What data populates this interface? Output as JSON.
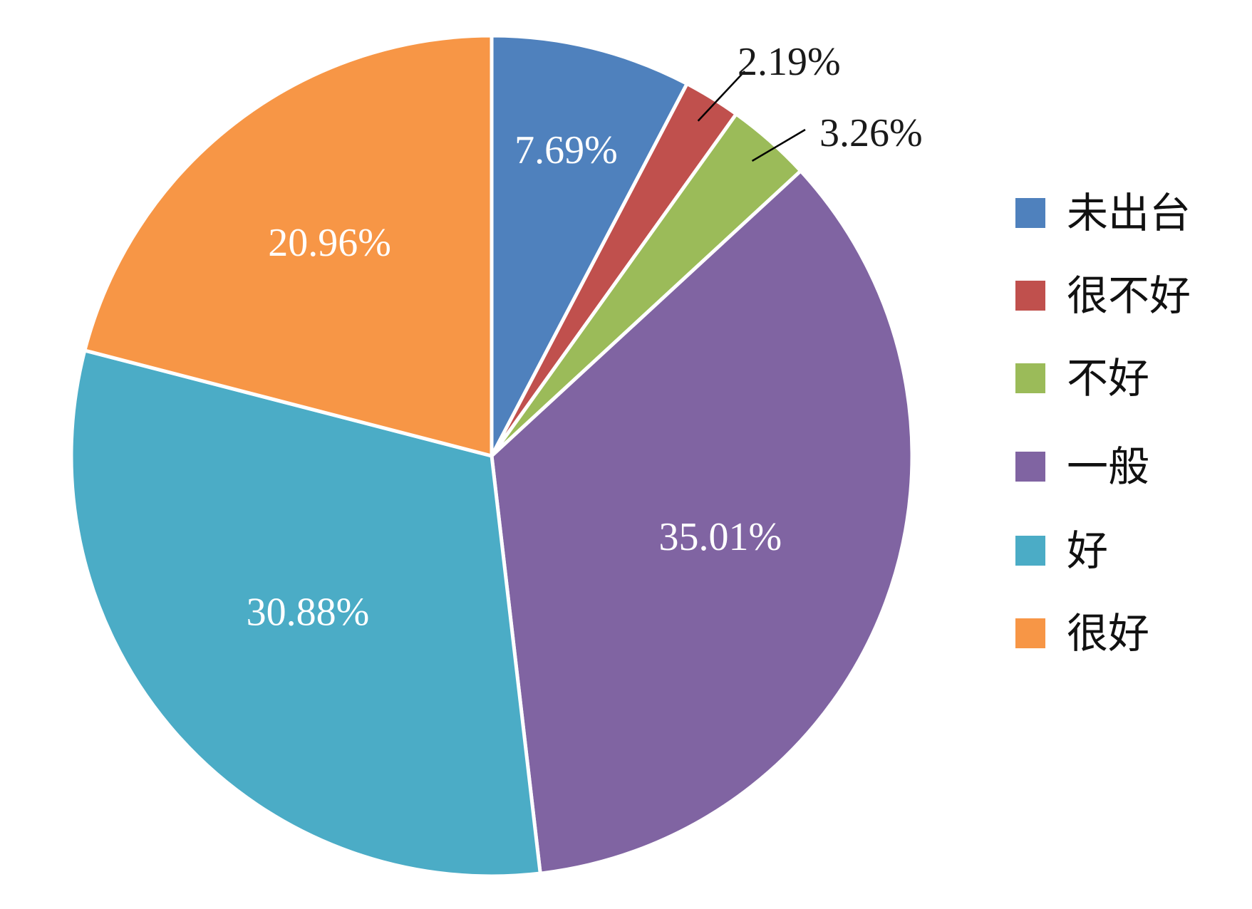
{
  "chart_data": {
    "type": "pie",
    "title": "",
    "start_angle_deg": 0,
    "direction": "clockwise",
    "legend_position": "right",
    "slices": [
      {
        "label": "未出台",
        "value": 7.69,
        "display": "7.69%",
        "color": "#4f81bd",
        "label_placement": "inside"
      },
      {
        "label": "很不好",
        "value": 2.19,
        "display": "2.19%",
        "color": "#c0504d",
        "label_placement": "outside"
      },
      {
        "label": "不好",
        "value": 3.26,
        "display": "3.26%",
        "color": "#9bbb59",
        "label_placement": "outside"
      },
      {
        "label": "一般",
        "value": 35.01,
        "display": "35.01%",
        "color": "#8064a2",
        "label_placement": "inside"
      },
      {
        "label": "好",
        "value": 30.88,
        "display": "30.88%",
        "color": "#4bacc6",
        "label_placement": "inside"
      },
      {
        "label": "很好",
        "value": 20.96,
        "display": "20.96%",
        "color": "#f79646",
        "label_placement": "inside"
      }
    ]
  }
}
